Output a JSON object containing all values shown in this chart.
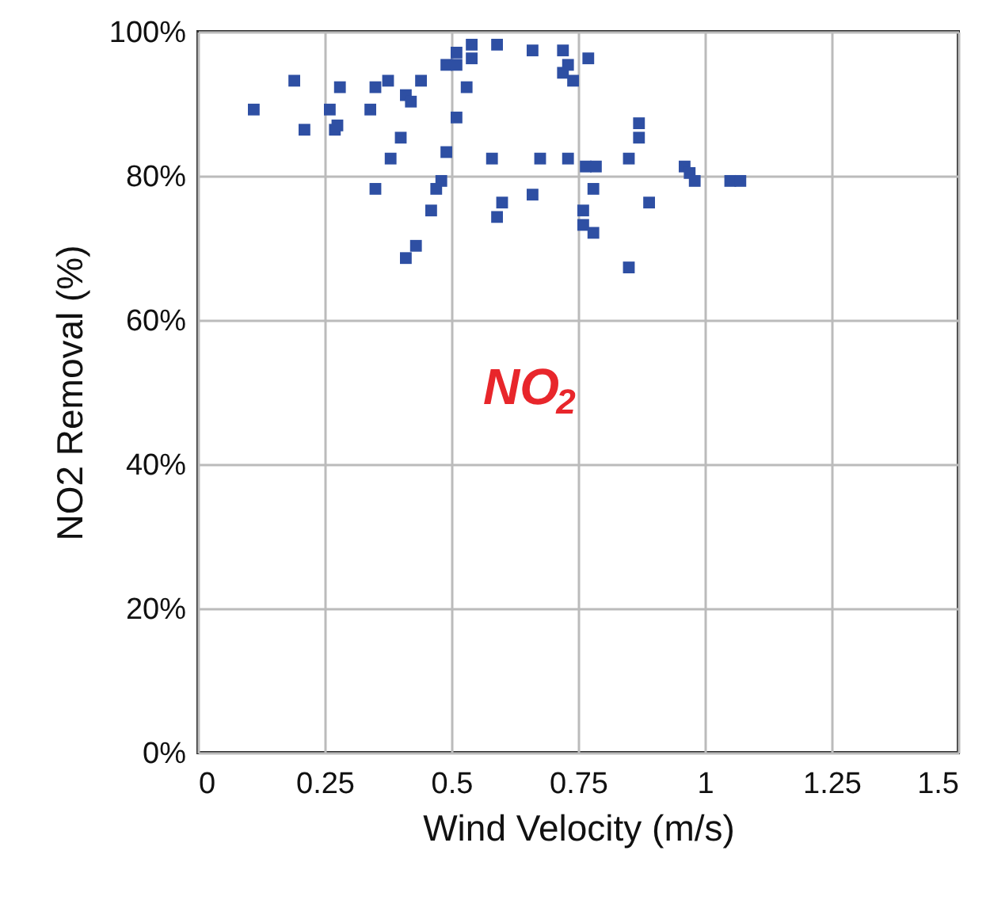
{
  "chart_data": {
    "type": "scatter",
    "xlabel": "Wind Velocity (m/s)",
    "ylabel": "NO2 Removal (%)",
    "annotations": [
      "NO$_{2}$"
    ],
    "xlim": [
      0,
      1.5
    ],
    "xticks": [
      0,
      0.25,
      0.5,
      0.75,
      1,
      1.25,
      1.5
    ],
    "ylim": [
      0,
      100
    ],
    "yticks": [
      {
        "value": 0,
        "label": "0%"
      },
      {
        "value": 20,
        "label": "20%"
      },
      {
        "value": 40,
        "label": "40%"
      },
      {
        "value": 60,
        "label": "60%"
      },
      {
        "value": 80,
        "label": "80%"
      },
      {
        "value": 100,
        "label": "100%"
      }
    ],
    "grid": true,
    "marker": "square",
    "series": [
      {
        "color": "#2e4fa3",
        "x": [
          0.11,
          0.19,
          0.21,
          0.26,
          0.27,
          0.275,
          0.28,
          0.34,
          0.35,
          0.35,
          0.375,
          0.38,
          0.4,
          0.41,
          0.41,
          0.42,
          0.43,
          0.44,
          0.46,
          0.47,
          0.48,
          0.49,
          0.49,
          0.51,
          0.51,
          0.51,
          0.53,
          0.54,
          0.54,
          0.58,
          0.59,
          0.59,
          0.6,
          0.66,
          0.66,
          0.675,
          0.72,
          0.72,
          0.73,
          0.73,
          0.74,
          0.77,
          0.76,
          0.76,
          0.765,
          0.785,
          0.78,
          0.78,
          0.85,
          0.85,
          0.87,
          0.87,
          0.89,
          0.96,
          0.97,
          0.98,
          1.05,
          1.07
        ],
        "values": [
          89.2,
          93.2,
          86.4,
          89.2,
          86.4,
          87.0,
          92.3,
          89.2,
          92.3,
          78.2,
          93.2,
          82.4,
          85.3,
          91.2,
          68.6,
          90.3,
          70.3,
          93.2,
          75.2,
          78.2,
          79.3,
          83.3,
          95.4,
          95.4,
          97.1,
          88.1,
          92.3,
          96.3,
          98.2,
          82.4,
          74.3,
          98.2,
          76.3,
          77.4,
          97.4,
          82.4,
          97.4,
          94.3,
          95.4,
          82.4,
          93.2,
          96.3,
          75.2,
          73.2,
          81.3,
          81.3,
          78.2,
          72.1,
          82.4,
          67.3,
          87.3,
          85.3,
          76.3,
          81.3,
          80.4,
          79.3,
          79.3,
          79.3
        ]
      }
    ]
  }
}
